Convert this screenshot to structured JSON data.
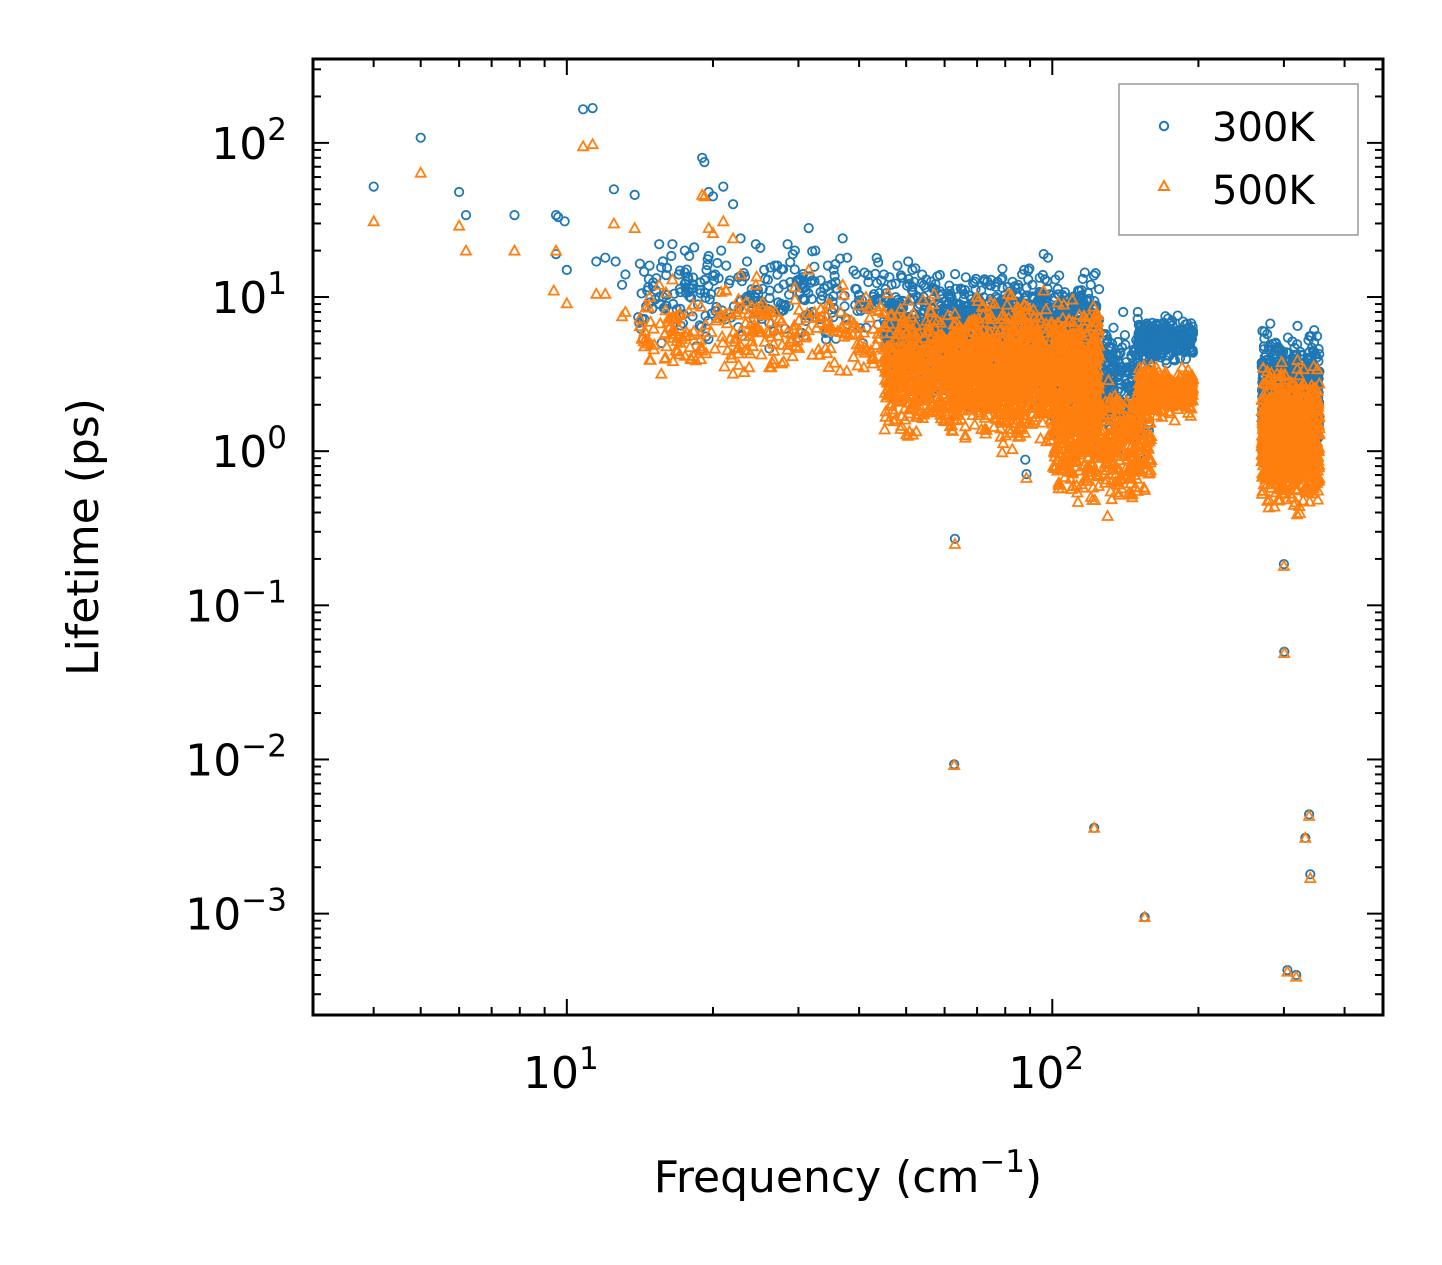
{
  "chart_data": {
    "type": "scatter",
    "title": "",
    "xlabel": "Frequency (cm",
    "xlabel_sup": "−1",
    "xlabel_close": ")",
    "ylabel": "Lifetime (ps)",
    "xscale": "log",
    "yscale": "log",
    "xlim": [
      3.0,
      480
    ],
    "ylim": [
      0.00022,
      350
    ],
    "xticks": [
      {
        "value": 10,
        "base": "10",
        "exp": "1"
      },
      {
        "value": 100,
        "base": "10",
        "exp": "2"
      }
    ],
    "yticks": [
      {
        "value": 0.001,
        "base": "10",
        "exp": "−3"
      },
      {
        "value": 0.01,
        "base": "10",
        "exp": "−2"
      },
      {
        "value": 0.1,
        "base": "10",
        "exp": "−1"
      },
      {
        "value": 1,
        "base": "10",
        "exp": "0"
      },
      {
        "value": 10,
        "base": "10",
        "exp": "1"
      },
      {
        "value": 100,
        "base": "10",
        "exp": "2"
      }
    ],
    "legend": {
      "position": "top-right",
      "entries": [
        {
          "label": "300K",
          "marker": "circle",
          "color": "#1f77b4"
        },
        {
          "label": "500K",
          "marker": "triangle",
          "color": "#ff7f0e"
        }
      ]
    },
    "series": [
      {
        "name": "300K",
        "marker": "circle",
        "color": "#1f77b4",
        "points": [
          [
            4.0,
            52
          ],
          [
            5.0,
            108
          ],
          [
            6.0,
            48
          ],
          [
            6.2,
            34
          ],
          [
            7.8,
            34
          ],
          [
            9.5,
            34
          ],
          [
            9.6,
            33
          ],
          [
            9.5,
            19
          ],
          [
            9.9,
            31
          ],
          [
            10.0,
            15
          ],
          [
            10.8,
            165
          ],
          [
            11.3,
            168
          ],
          [
            11.5,
            17
          ],
          [
            12.0,
            18
          ],
          [
            12.5,
            50
          ],
          [
            12.6,
            17
          ],
          [
            13.0,
            12
          ],
          [
            13.2,
            14
          ],
          [
            13.8,
            46
          ],
          [
            14.8,
            16
          ],
          [
            15.5,
            22
          ],
          [
            15.8,
            10
          ],
          [
            16.5,
            22
          ],
          [
            17.0,
            14
          ],
          [
            17.5,
            20
          ],
          [
            17.8,
            13
          ],
          [
            18.3,
            21
          ],
          [
            19.0,
            80
          ],
          [
            19.2,
            75
          ],
          [
            19.6,
            48
          ],
          [
            20.0,
            45
          ],
          [
            20.2,
            14
          ],
          [
            20.8,
            20
          ],
          [
            21.0,
            52
          ],
          [
            21.3,
            16
          ],
          [
            22.0,
            40
          ],
          [
            22.8,
            24
          ],
          [
            23.5,
            17
          ],
          [
            24.5,
            22
          ],
          [
            25.5,
            15
          ],
          [
            26.8,
            16
          ],
          [
            28.5,
            22
          ],
          [
            29.5,
            20
          ],
          [
            31.5,
            28
          ],
          [
            32.5,
            20
          ],
          [
            34.5,
            16
          ],
          [
            37.0,
            24
          ],
          [
            37.8,
            18
          ],
          [
            45.0,
            14
          ],
          [
            48.0,
            16
          ],
          [
            50.5,
            17
          ],
          [
            51.5,
            15
          ],
          [
            55.0,
            13
          ],
          [
            61.5,
            10
          ],
          [
            62.0,
            10
          ],
          [
            62.5,
            5.0
          ],
          [
            63.0,
            0.27
          ],
          [
            62.8,
            0.0093
          ],
          [
            68.0,
            6.0
          ],
          [
            70.0,
            7.0
          ],
          [
            78.0,
            4.0
          ],
          [
            85.0,
            12.0
          ],
          [
            87.5,
            15.0
          ],
          [
            88.0,
            0.88
          ],
          [
            88.5,
            0.71
          ],
          [
            91.0,
            12.0
          ],
          [
            96.0,
            19.0
          ],
          [
            98.0,
            18.0
          ],
          [
            101.5,
            13.0
          ],
          [
            105.0,
            8.5
          ],
          [
            113.0,
            11.0
          ],
          [
            114.0,
            9.5
          ],
          [
            120.0,
            5.0
          ],
          [
            122.0,
            0.0036
          ],
          [
            130.0,
            3.0
          ],
          [
            140.0,
            8.0
          ],
          [
            150.0,
            8.0
          ],
          [
            155.0,
            0.00095
          ],
          [
            155.0,
            0.88
          ],
          [
            165.0,
            6.5
          ],
          [
            185.0,
            6.0
          ],
          [
            300.0,
            0.185
          ],
          [
            300.5,
            0.05
          ],
          [
            305.0,
            0.00043
          ],
          [
            318.0,
            0.0004
          ],
          [
            320.0,
            6.5
          ],
          [
            332.0,
            0.0031
          ],
          [
            337.0,
            4.0
          ],
          [
            338.0,
            0.0044
          ],
          [
            340.0,
            0.0018
          ]
        ]
      },
      {
        "name": "500K",
        "marker": "triangle",
        "color": "#ff7f0e",
        "points": [
          [
            4.0,
            31
          ],
          [
            5.0,
            64
          ],
          [
            6.0,
            29
          ],
          [
            6.2,
            20
          ],
          [
            7.8,
            20
          ],
          [
            9.5,
            20
          ],
          [
            9.4,
            11
          ],
          [
            10.0,
            9.1
          ],
          [
            10.8,
            95
          ],
          [
            11.3,
            98
          ],
          [
            11.5,
            10.5
          ],
          [
            12.0,
            10.5
          ],
          [
            12.5,
            30
          ],
          [
            13.0,
            7.5
          ],
          [
            13.2,
            8.0
          ],
          [
            13.8,
            28
          ],
          [
            14.8,
            10
          ],
          [
            15.5,
            12
          ],
          [
            16.5,
            13
          ],
          [
            19.0,
            46
          ],
          [
            19.2,
            45
          ],
          [
            19.6,
            28
          ],
          [
            20.0,
            26
          ],
          [
            21.0,
            31
          ],
          [
            21.3,
            11
          ],
          [
            22.0,
            24
          ],
          [
            22.8,
            14
          ],
          [
            24.5,
            12
          ],
          [
            31.5,
            15
          ],
          [
            34.5,
            9
          ],
          [
            37.0,
            12
          ],
          [
            45.0,
            8
          ],
          [
            48.0,
            7.5
          ],
          [
            50.5,
            9.5
          ],
          [
            55.0,
            7
          ],
          [
            62.0,
            5.5
          ],
          [
            63.0,
            0.25
          ],
          [
            62.8,
            0.0092
          ],
          [
            78.0,
            2.5
          ],
          [
            85.0,
            8.0
          ],
          [
            87.5,
            9.0
          ],
          [
            88.5,
            0.67
          ],
          [
            96.0,
            11.0
          ],
          [
            113.0,
            6.0
          ],
          [
            122.0,
            0.0036
          ],
          [
            130.0,
            0.38
          ],
          [
            155.0,
            0.00095
          ],
          [
            155.0,
            0.56
          ],
          [
            185.0,
            3.5
          ],
          [
            300.0,
            0.18
          ],
          [
            300.5,
            0.049
          ],
          [
            305.0,
            0.00042
          ],
          [
            318.0,
            0.00039
          ],
          [
            320.0,
            3.9
          ],
          [
            332.0,
            0.0031
          ],
          [
            338.0,
            0.0043
          ],
          [
            340.0,
            0.0017
          ]
        ],
        "clusters": [
          {
            "x_range": [
              14.0,
              45.0
            ],
            "y_range": [
              2.5,
              14.0
            ],
            "count": 260
          },
          {
            "x_range": [
              45.0,
              62.0
            ],
            "y_range": [
              1.0,
              12.0
            ],
            "count": 420
          },
          {
            "x_range": [
              62.0,
              125.0
            ],
            "y_range": [
              0.9,
              12.0
            ],
            "count": 1400
          },
          {
            "x_range": [
              100.0,
              160.0
            ],
            "y_range": [
              0.38,
              3.5
            ],
            "count": 500
          },
          {
            "x_range": [
              150.0,
              195.0
            ],
            "y_range": [
              1.5,
              4.0
            ],
            "count": 320
          },
          {
            "x_range": [
              270.0,
              355.0
            ],
            "y_range": [
              0.33,
              4.5
            ],
            "count": 900
          }
        ]
      }
    ],
    "clusters_300K": [
      {
        "x_range": [
          14.0,
          45.0
        ],
        "y_range": [
          4.0,
          25.0
        ],
        "count": 260
      },
      {
        "x_range": [
          45.0,
          62.0
        ],
        "y_range": [
          1.8,
          18.0
        ],
        "count": 420
      },
      {
        "x_range": [
          62.0,
          125.0
        ],
        "y_range": [
          1.5,
          18.0
        ],
        "count": 1400
      },
      {
        "x_range": [
          100.0,
          160.0
        ],
        "y_range": [
          0.85,
          9.0
        ],
        "count": 500
      },
      {
        "x_range": [
          150.0,
          195.0
        ],
        "y_range": [
          3.5,
          8.0
        ],
        "count": 320
      },
      {
        "x_range": [
          270.0,
          355.0
        ],
        "y_range": [
          0.7,
          7.0
        ],
        "count": 900
      }
    ]
  }
}
